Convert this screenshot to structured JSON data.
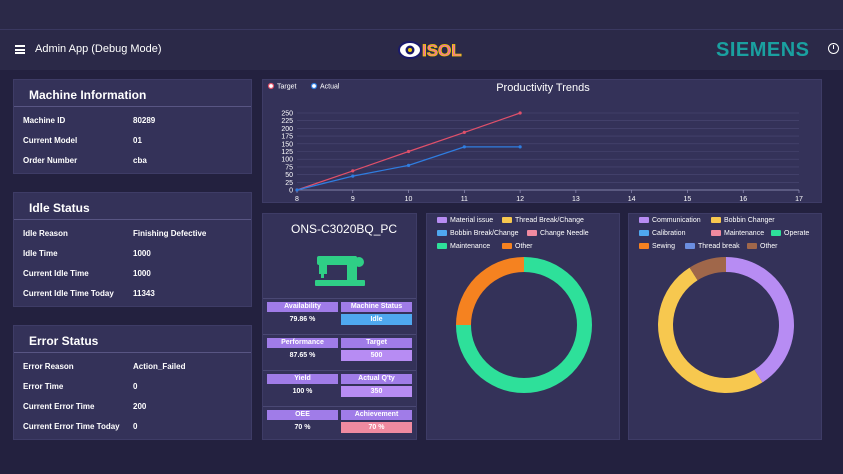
{
  "header": {
    "app_title": "Admin App (Debug Mode)",
    "logo_text": "ISOL",
    "brand": "SIEMENS",
    "colors": {
      "bg": "#23213f",
      "card": "#343259",
      "brand": "#1aa0a0"
    }
  },
  "machine_info": {
    "title": "Machine Information",
    "rows": [
      {
        "label": "Machine ID",
        "value": "80289"
      },
      {
        "label": "Current Model",
        "value": "01"
      },
      {
        "label": "Order Number",
        "value": "cba"
      }
    ]
  },
  "idle_status": {
    "title": "Idle Status",
    "rows": [
      {
        "label": "Idle Reason",
        "value": "Finishing Defective"
      },
      {
        "label": "Idle Time",
        "value": "1000"
      },
      {
        "label": "Current Idle Time",
        "value": "1000"
      },
      {
        "label": "Current Idle Time Today",
        "value": "11343"
      }
    ]
  },
  "error_status": {
    "title": "Error Status",
    "rows": [
      {
        "label": "Error Reason",
        "value": "Action_Failed"
      },
      {
        "label": "Error Time",
        "value": "0"
      },
      {
        "label": "Current Error Time",
        "value": "200"
      },
      {
        "label": "Current Error Time Today",
        "value": "0"
      }
    ]
  },
  "machine_panel": {
    "name": "ONS-C3020BQ_PC",
    "icon": "sewing-machine-icon",
    "kpis": [
      {
        "label_a": "Availability",
        "value_a": "79.86 %",
        "label_b": "Machine Status",
        "value_b": "Idle",
        "value_b_color": "#4fa8ef"
      },
      {
        "label_a": "Performance",
        "value_a": "87.65 %",
        "label_b": "Target",
        "value_b": "500",
        "value_b_color": "#b78cf3"
      },
      {
        "label_a": "Yield",
        "value_a": "100 %",
        "label_b": "Actual Q'ty",
        "value_b": "350",
        "value_b_color": "#b78cf3"
      },
      {
        "label_a": "OEE",
        "value_a": "70 %",
        "label_b": "Achievement",
        "value_b": "70 %",
        "value_b_color": "#f08aa0"
      }
    ]
  },
  "chart_data": [
    {
      "type": "line",
      "title": "Productivity Trends",
      "x": [
        8,
        9,
        10,
        11,
        12
      ],
      "xlim": [
        8,
        17
      ],
      "xticks": [
        8,
        9,
        10,
        11,
        12,
        13,
        14,
        15,
        16,
        17
      ],
      "ylim": [
        0,
        250
      ],
      "yticks": [
        0,
        25,
        50,
        75,
        100,
        125,
        150,
        175,
        200,
        225,
        250
      ],
      "grid": true,
      "legend": "top-left",
      "series": [
        {
          "name": "Target",
          "color": "#e0506a",
          "values": [
            0,
            62,
            125,
            187,
            250
          ]
        },
        {
          "name": "Actual",
          "color": "#2f7de0",
          "values": [
            0,
            45,
            80,
            140,
            140
          ]
        }
      ]
    },
    {
      "type": "pie",
      "legend": "top",
      "labels": [
        "Material issue",
        "Thread Break/Change",
        "Bobbin Break/Change",
        "Change Needle",
        "Maintenance",
        "Other"
      ],
      "colors": [
        "#b78cf3",
        "#f7c84f",
        "#4fa8ef",
        "#f08aa0",
        "#2ee09a",
        "#f58220"
      ],
      "values": [
        0,
        0,
        0,
        0,
        75,
        25
      ]
    },
    {
      "type": "pie",
      "legend": "top",
      "labels": [
        "Communication",
        "Bobbin Changer",
        "Calibration",
        "Maintenance",
        "Operate",
        "Sewing",
        "Thread break",
        "Other"
      ],
      "colors": [
        "#b78cf3",
        "#f7c84f",
        "#4fa8ef",
        "#f08aa0",
        "#2ee09a",
        "#f58220",
        "#6b8ee0",
        "#a0674a"
      ],
      "values": [
        41,
        50,
        0,
        0,
        0,
        0,
        0,
        9
      ]
    }
  ]
}
